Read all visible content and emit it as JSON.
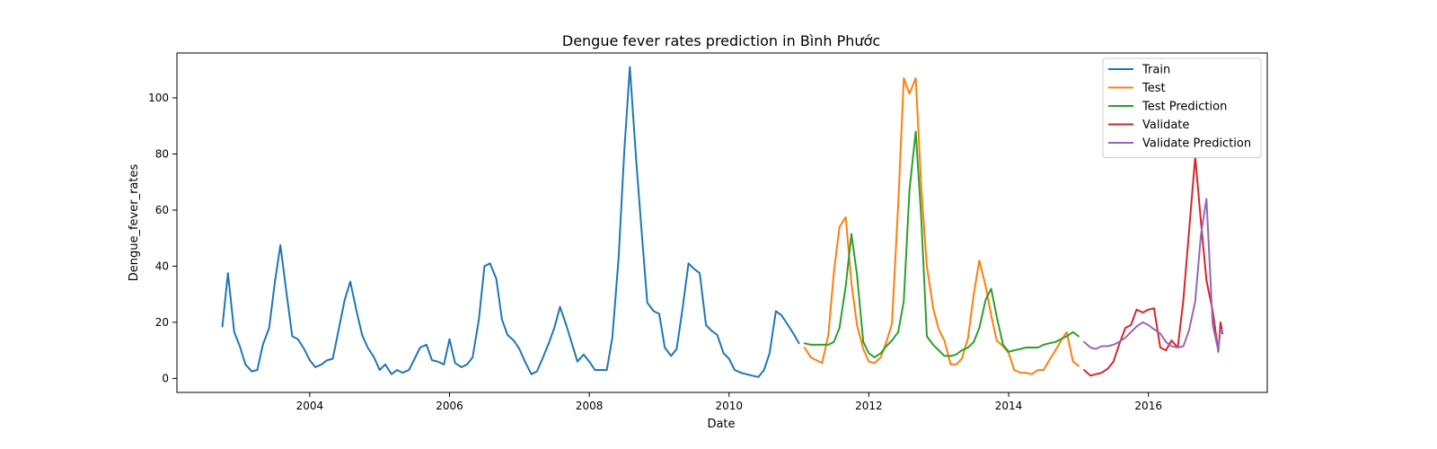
{
  "chart_data": {
    "type": "line",
    "title": "Dengue fever rates prediction in Bình Phước",
    "xlabel": "Date",
    "ylabel": "Dengue_fever_rates",
    "xlim": [
      2002.1,
      2017.7
    ],
    "ylim": [
      -5,
      116
    ],
    "xticks": [
      2004,
      2006,
      2008,
      2010,
      2012,
      2014,
      2016
    ],
    "yticks": [
      0,
      20,
      40,
      60,
      80,
      100
    ],
    "grid": false,
    "legend_position": "top-right",
    "series": [
      {
        "name": "Train",
        "color": "#1f77b4",
        "x": [
          2002.75,
          2002.83,
          2002.92,
          2003.0,
          2003.08,
          2003.17,
          2003.25,
          2003.33,
          2003.42,
          2003.5,
          2003.58,
          2003.67,
          2003.75,
          2003.83,
          2003.92,
          2004.0,
          2004.08,
          2004.17,
          2004.25,
          2004.33,
          2004.42,
          2004.5,
          2004.58,
          2004.67,
          2004.75,
          2004.83,
          2004.92,
          2005.0,
          2005.08,
          2005.17,
          2005.25,
          2005.33,
          2005.42,
          2005.5,
          2005.58,
          2005.67,
          2005.75,
          2005.83,
          2005.92,
          2006.0,
          2006.08,
          2006.17,
          2006.25,
          2006.33,
          2006.42,
          2006.5,
          2006.58,
          2006.67,
          2006.75,
          2006.83,
          2006.92,
          2007.0,
          2007.08,
          2007.17,
          2007.25,
          2007.33,
          2007.42,
          2007.5,
          2007.58,
          2007.67,
          2007.75,
          2007.83,
          2007.92,
          2008.0,
          2008.08,
          2008.17,
          2008.25,
          2008.33,
          2008.42,
          2008.5,
          2008.58,
          2008.67,
          2008.75,
          2008.83,
          2008.92,
          2009.0,
          2009.08,
          2009.17,
          2009.25,
          2009.33,
          2009.42,
          2009.5,
          2009.58,
          2009.67,
          2009.75,
          2009.83,
          2009.92,
          2010.0,
          2010.08,
          2010.17,
          2010.25,
          2010.33,
          2010.42,
          2010.5,
          2010.58,
          2010.67,
          2010.75,
          2010.83,
          2010.92,
          2011.0
        ],
        "y": [
          18.5,
          37.5,
          16.5,
          11.5,
          5.0,
          2.5,
          3.0,
          12.0,
          18.0,
          34.0,
          47.5,
          30.0,
          15.0,
          14.0,
          10.5,
          6.5,
          4.0,
          5.0,
          6.5,
          7.0,
          18.0,
          28.0,
          34.5,
          24.0,
          15.5,
          11.0,
          7.5,
          3.0,
          5.0,
          1.5,
          3.0,
          2.0,
          3.0,
          7.0,
          11.0,
          12.0,
          6.5,
          6.0,
          5.0,
          14.0,
          5.5,
          4.0,
          5.0,
          7.5,
          21.0,
          40.0,
          41.0,
          35.5,
          21.0,
          15.5,
          13.5,
          10.5,
          6.0,
          1.5,
          2.5,
          7.0,
          12.5,
          18.0,
          25.5,
          19.0,
          12.5,
          6.0,
          8.5,
          6.0,
          3.0,
          3.0,
          3.0,
          14.5,
          43.0,
          81.0,
          111.0,
          78.0,
          52.0,
          27.0,
          24.0,
          23.0,
          11.0,
          8.0,
          10.5,
          24.0,
          41.0,
          39.0,
          37.5,
          19.0,
          17.0,
          15.5,
          9.0,
          7.0,
          3.0,
          2.0,
          1.5,
          1.0,
          0.5,
          3.0,
          9.0,
          24.0,
          22.5,
          19.5,
          16.0,
          12.5
        ]
      },
      {
        "name": "Test",
        "color": "#ff7f0e",
        "x": [
          2011.08,
          2011.17,
          2011.25,
          2011.33,
          2011.42,
          2011.5,
          2011.58,
          2011.67,
          2011.75,
          2011.83,
          2011.92,
          2012.0,
          2012.08,
          2012.17,
          2012.25,
          2012.33,
          2012.42,
          2012.5,
          2012.58,
          2012.67,
          2012.75,
          2012.83,
          2012.92,
          2013.0,
          2013.08,
          2013.17,
          2013.25,
          2013.33,
          2013.42,
          2013.5,
          2013.58,
          2013.67,
          2013.75,
          2013.83,
          2013.92,
          2014.0,
          2014.08,
          2014.17,
          2014.25,
          2014.33,
          2014.42,
          2014.5,
          2014.58,
          2014.67,
          2014.75,
          2014.83,
          2014.92,
          2015.0
        ],
        "y": [
          11.0,
          7.5,
          6.5,
          5.5,
          15.5,
          38.0,
          54.0,
          57.5,
          34.0,
          19.0,
          10.5,
          6.0,
          5.5,
          7.5,
          13.0,
          19.5,
          62.0,
          107.0,
          101.5,
          107.0,
          68.0,
          40.0,
          25.0,
          17.5,
          13.5,
          5.0,
          5.0,
          7.0,
          14.5,
          30.0,
          42.0,
          33.0,
          22.5,
          13.5,
          11.5,
          9.0,
          3.0,
          2.0,
          2.0,
          1.5,
          3.0,
          3.0,
          6.5,
          10.0,
          13.5,
          16.5,
          6.0,
          4.5
        ]
      },
      {
        "name": "Test Prediction",
        "color": "#2ca02c",
        "x": [
          2011.08,
          2011.17,
          2011.25,
          2011.33,
          2011.42,
          2011.5,
          2011.58,
          2011.67,
          2011.75,
          2011.83,
          2011.92,
          2012.0,
          2012.08,
          2012.17,
          2012.25,
          2012.33,
          2012.42,
          2012.5,
          2012.58,
          2012.67,
          2012.75,
          2012.83,
          2012.92,
          2013.0,
          2013.08,
          2013.17,
          2013.25,
          2013.33,
          2013.42,
          2013.5,
          2013.58,
          2013.67,
          2013.75,
          2013.83,
          2013.92,
          2014.0,
          2014.08,
          2014.17,
          2014.25,
          2014.33,
          2014.42,
          2014.5,
          2014.58,
          2014.67,
          2014.75,
          2014.83,
          2014.92,
          2015.0
        ],
        "y": [
          12.5,
          12.0,
          12.0,
          12.0,
          12.0,
          13.0,
          18.0,
          33.0,
          51.5,
          37.0,
          13.0,
          9.0,
          7.5,
          9.0,
          11.5,
          13.5,
          16.5,
          27.5,
          67.0,
          88.0,
          57.0,
          15.0,
          12.0,
          10.0,
          8.0,
          8.0,
          8.5,
          10.0,
          11.0,
          13.0,
          18.0,
          28.0,
          32.0,
          22.0,
          12.0,
          9.5,
          10.0,
          10.5,
          11.0,
          11.0,
          11.0,
          12.0,
          12.5,
          13.0,
          14.0,
          15.0,
          16.5,
          15.0
        ]
      },
      {
        "name": "Validate",
        "color": "#d62728",
        "x": [
          2015.08,
          2015.17,
          2015.25,
          2015.33,
          2015.42,
          2015.5,
          2015.58,
          2015.67,
          2015.75,
          2015.83,
          2015.92,
          2016.0,
          2016.08,
          2016.17,
          2016.25,
          2016.33,
          2016.42,
          2016.5,
          2016.58,
          2016.67,
          2016.75,
          2016.83,
          2016.92,
          2017.0,
          2017.03,
          2017.06
        ],
        "y": [
          3.0,
          1.0,
          1.5,
          2.0,
          3.5,
          6.0,
          12.0,
          18.0,
          19.0,
          24.5,
          23.5,
          24.5,
          25.0,
          11.0,
          10.0,
          13.5,
          11.0,
          28.0,
          52.0,
          79.0,
          56.0,
          35.0,
          24.0,
          9.5,
          20.0,
          16.0
        ]
      },
      {
        "name": "Validate Prediction",
        "color": "#9467bd",
        "x": [
          2015.08,
          2015.17,
          2015.25,
          2015.33,
          2015.42,
          2015.5,
          2015.58,
          2015.67,
          2015.75,
          2015.83,
          2015.92,
          2016.0,
          2016.08,
          2016.17,
          2016.25,
          2016.33,
          2016.42,
          2016.5,
          2016.58,
          2016.67,
          2016.75,
          2016.83,
          2016.92,
          2017.0,
          2017.03,
          2017.06
        ],
        "y": [
          13.0,
          11.0,
          10.5,
          11.5,
          11.5,
          12.0,
          13.0,
          14.5,
          16.5,
          18.5,
          20.0,
          19.0,
          17.5,
          16.0,
          13.0,
          11.5,
          11.0,
          11.5,
          17.0,
          27.5,
          51.0,
          64.0,
          19.0,
          10.0,
          17.5,
          16.5
        ]
      }
    ]
  }
}
